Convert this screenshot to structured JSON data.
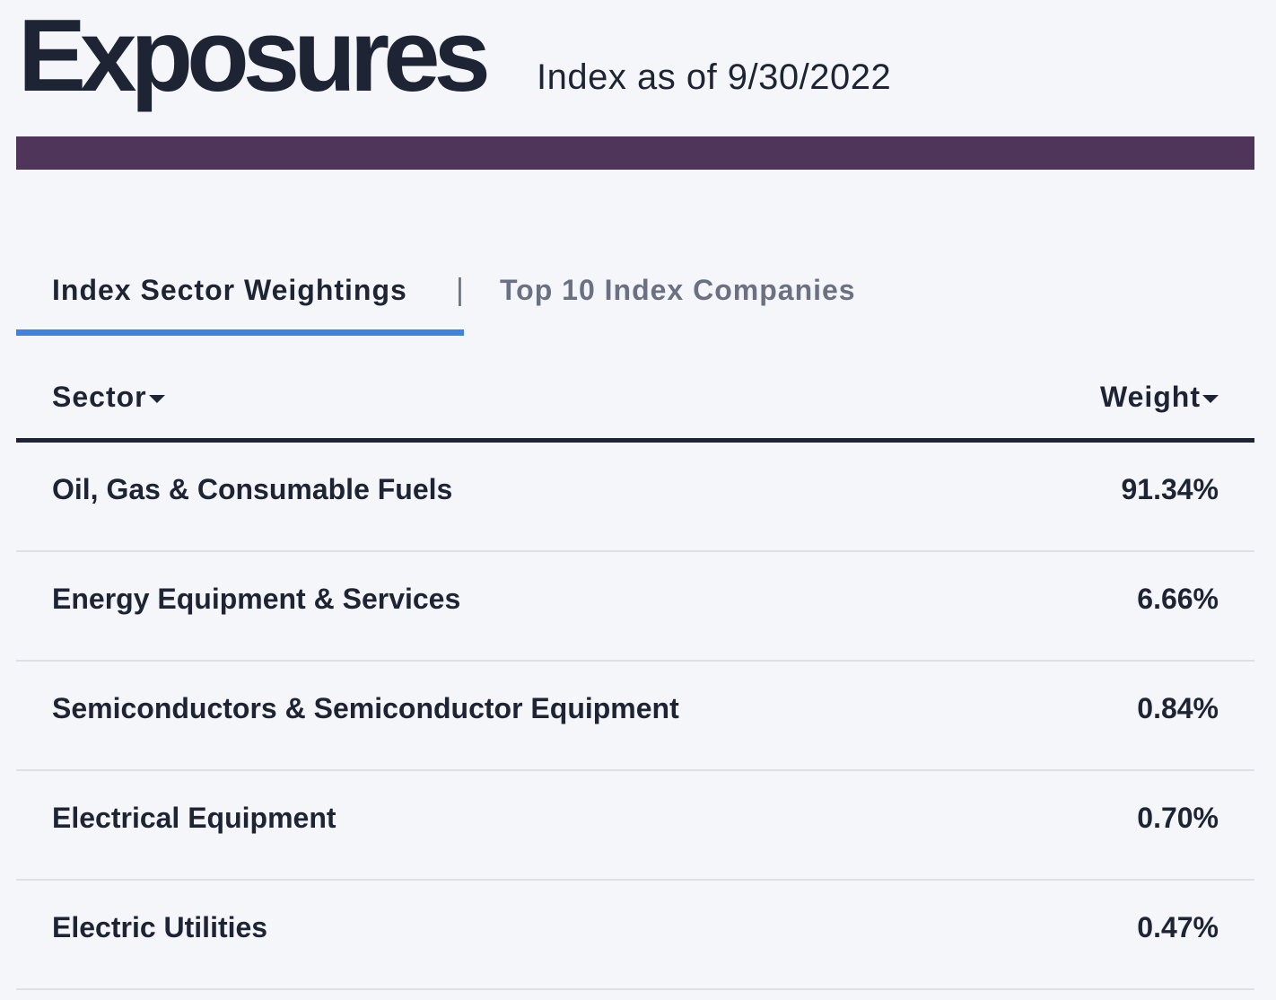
{
  "header": {
    "title": "Exposures",
    "subtitle": "Index as of 9/30/2022"
  },
  "colors": {
    "accent_bar": "#50355a",
    "active_tab_underline": "#3f83e0",
    "text": "#1e2433",
    "muted_text": "#6b7183"
  },
  "tabs": {
    "items": [
      {
        "label": "Index Sector Weightings",
        "active": true
      },
      {
        "label": "Top 10 Index Companies",
        "active": false
      }
    ],
    "separator": "|"
  },
  "table": {
    "columns": {
      "sector": "Sector",
      "weight": "Weight"
    },
    "sort_icon": "caret-down-icon",
    "rows": [
      {
        "sector": "Oil, Gas & Consumable Fuels",
        "weight": "91.34%"
      },
      {
        "sector": "Energy Equipment & Services",
        "weight": "6.66%"
      },
      {
        "sector": "Semiconductors & Semiconductor Equipment",
        "weight": "0.84%"
      },
      {
        "sector": "Electrical Equipment",
        "weight": "0.70%"
      },
      {
        "sector": "Electric Utilities",
        "weight": "0.47%"
      }
    ]
  }
}
